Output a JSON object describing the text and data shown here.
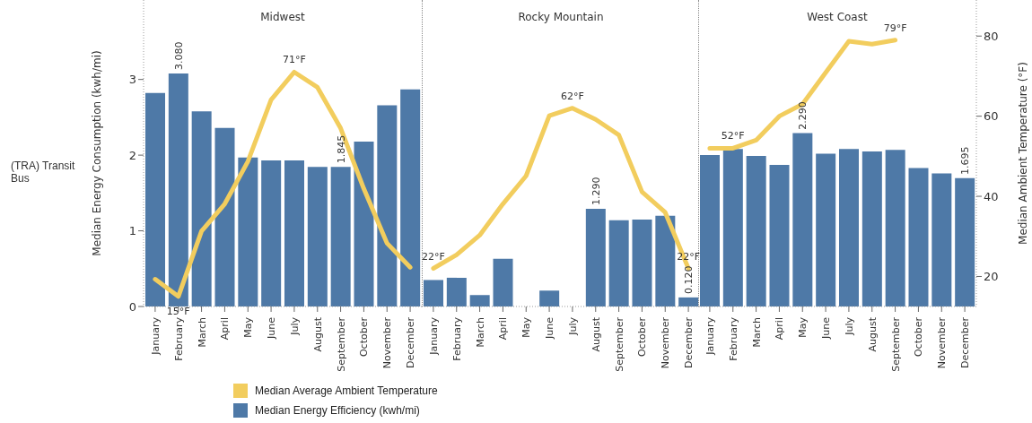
{
  "chart_data": [
    {
      "type": "bar",
      "title": "Midwest",
      "ylabel": "Median Energy Consumption (kwh/mi)",
      "annotations": [
        "(TRA) Transit Bus"
      ],
      "legend": "bottom",
      "tick_labels": "xy",
      "categories": [
        "January",
        "February",
        "March",
        "April",
        "May",
        "June",
        "July",
        "August",
        "September",
        "October",
        "November",
        "December"
      ],
      "ylim": [
        0,
        4.05
      ],
      "yticks": [
        0,
        1,
        2,
        3
      ],
      "y2lim": [
        12.5,
        89
      ],
      "series": [
        {
          "name": "Median Average Ambient Temperature",
          "type": "line",
          "axis": "y2",
          "color": "#f2cd5e",
          "values": [
            19.3,
            15,
            31.3,
            38.1,
            48.7,
            64.1,
            71,
            67.2,
            57,
            41.9,
            28.3,
            22.3
          ],
          "value_labels": [
            null,
            "15°F",
            null,
            null,
            null,
            null,
            "71°F",
            null,
            null,
            null,
            null,
            null
          ]
        },
        {
          "name": "Median Energy Efficiency (kwh/mi)",
          "color": "#4e79a7",
          "values": [
            2.82,
            3.08,
            2.58,
            2.36,
            1.97,
            1.93,
            1.93,
            1.845,
            1.845,
            2.18,
            2.66,
            2.87
          ],
          "value_labels": [
            null,
            "3.080",
            null,
            null,
            null,
            null,
            null,
            null,
            "1.845",
            null,
            null,
            null
          ]
        }
      ]
    },
    {
      "type": "bar",
      "title": "Rocky Mountain",
      "tick_labels": "x",
      "categories": [
        "January",
        "February",
        "March",
        "April",
        "May",
        "June",
        "July",
        "August",
        "September",
        "October",
        "November",
        "December"
      ],
      "ylim": [
        0,
        4.05
      ],
      "y2lim": [
        12.5,
        89
      ],
      "series": [
        {
          "type": "line",
          "axis": "y2",
          "color": "#f2cd5e",
          "values": [
            22,
            25.4,
            30.3,
            38.1,
            45.1,
            60.1,
            62,
            59.2,
            55.3,
            41.1,
            36,
            22
          ],
          "value_labels": [
            "22°F",
            null,
            null,
            null,
            null,
            null,
            "62°F",
            null,
            null,
            null,
            null,
            "22°F"
          ]
        },
        {
          "color": "#4e79a7",
          "values": [
            0.35,
            0.38,
            0.15,
            0.63,
            null,
            0.21,
            null,
            1.29,
            1.14,
            1.15,
            1.2,
            0.12
          ],
          "value_labels": [
            null,
            null,
            null,
            null,
            null,
            null,
            null,
            "1.290",
            null,
            null,
            null,
            "0.120"
          ]
        }
      ]
    },
    {
      "type": "bar",
      "title": "West Coast",
      "y2label": "Median Ambient Temperature (°F)",
      "tick_labels": "xy2",
      "categories": [
        "January",
        "February",
        "March",
        "April",
        "May",
        "June",
        "July",
        "August",
        "September",
        "October",
        "November",
        "December"
      ],
      "ylim": [
        0,
        4.05
      ],
      "y2lim": [
        12.5,
        89
      ],
      "y2ticks": [
        20,
        40,
        60,
        80
      ],
      "series": [
        {
          "type": "line",
          "axis": "y2",
          "color": "#f2cd5e",
          "values": [
            52,
            52,
            54,
            60,
            63,
            70.9,
            78.7,
            78,
            79,
            null,
            null,
            null
          ],
          "value_labels": [
            null,
            "52°F",
            null,
            null,
            null,
            null,
            null,
            null,
            "79°F",
            null,
            null,
            null
          ]
        },
        {
          "color": "#4e79a7",
          "values": [
            2.0,
            2.08,
            1.99,
            1.87,
            2.29,
            2.02,
            2.08,
            2.05,
            2.07,
            1.83,
            1.76,
            1.695
          ],
          "value_labels": [
            null,
            null,
            null,
            null,
            "2.290",
            null,
            null,
            null,
            null,
            null,
            null,
            "1.695"
          ]
        }
      ]
    }
  ]
}
